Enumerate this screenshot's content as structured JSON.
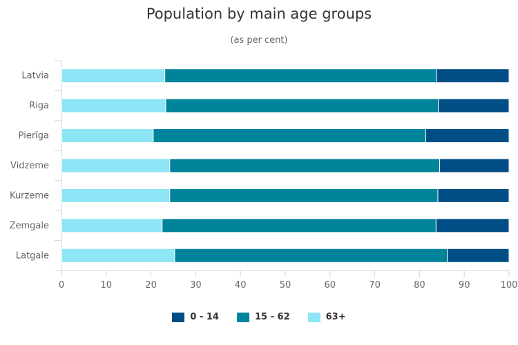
{
  "chart_data": {
    "type": "bar",
    "orientation": "horizontal",
    "stacked": true,
    "title": "Population by main age groups",
    "subtitle": "(as per cent)",
    "categories": [
      "Latvia",
      "Riga",
      "Pierīga",
      "Vidzeme",
      "Kurzeme",
      "Zemgale",
      "Latgale"
    ],
    "series": [
      {
        "name": "63+",
        "color": "#8ee5f5",
        "values": [
          23.1,
          23.3,
          20.5,
          24.2,
          24.2,
          22.5,
          25.3
        ]
      },
      {
        "name": "15 - 62",
        "color": "#00849b",
        "values": [
          60.7,
          60.9,
          60.9,
          60.3,
          59.9,
          61.2,
          60.9
        ]
      },
      {
        "name": "0 - 14",
        "color": "#004e85",
        "values": [
          16.2,
          15.8,
          18.6,
          15.5,
          15.9,
          16.3,
          13.8
        ]
      }
    ],
    "legend_order": [
      "0 - 14",
      "15 - 62",
      "63+"
    ],
    "xlim": [
      0,
      100
    ],
    "xticks": [
      "0",
      "10",
      "20",
      "30",
      "40",
      "50",
      "60",
      "70",
      "80",
      "90",
      "100"
    ],
    "grid": false,
    "legend_position": "bottom-center"
  }
}
